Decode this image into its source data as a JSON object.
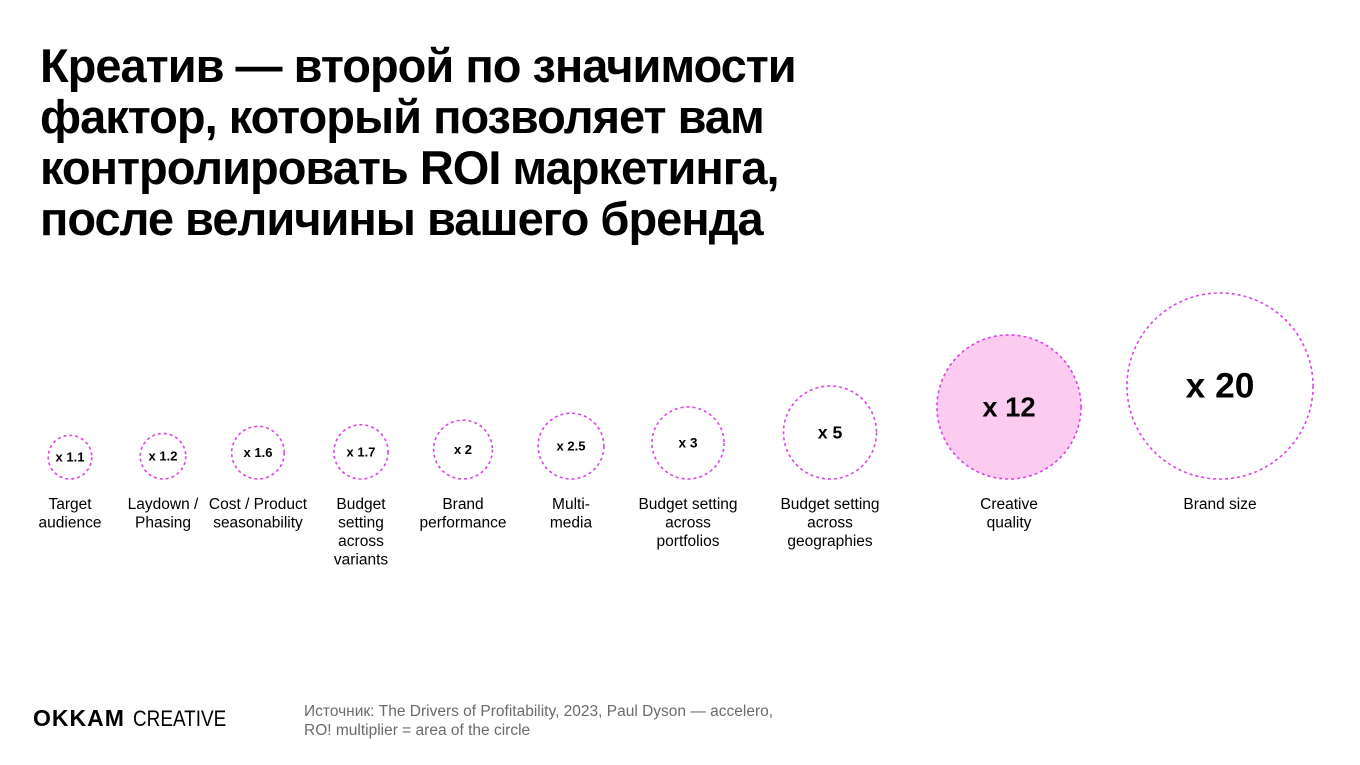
{
  "header": {
    "title_lines": [
      "Креатив — второй по значимости",
      "фактор, который позволяет вам",
      "контролировать ROI маркетинга,",
      "после величины вашего бренда"
    ]
  },
  "colors": {
    "accent": "#e040e8",
    "highlight_fill": "#fccbf0",
    "text": "#000000",
    "muted_text": "#6b6b6b"
  },
  "chart_data": {
    "type": "bubble",
    "title": "",
    "encoding": "RO! multiplier = area of the circle",
    "series": [
      {
        "label_lines": [
          "Target",
          "audience"
        ],
        "value": 1.1,
        "value_label": "x 1.1",
        "highlighted": false
      },
      {
        "label_lines": [
          "Laydown /",
          "Phasing"
        ],
        "value": 1.2,
        "value_label": "x 1.2",
        "highlighted": false
      },
      {
        "label_lines": [
          "Cost / Product",
          "seasonability"
        ],
        "value": 1.6,
        "value_label": "x 1.6",
        "highlighted": false
      },
      {
        "label_lines": [
          "Budget",
          "setting",
          "across",
          "variants"
        ],
        "value": 1.7,
        "value_label": "x 1.7",
        "highlighted": false
      },
      {
        "label_lines": [
          "Brand",
          "performance"
        ],
        "value": 2,
        "value_label": "x 2",
        "highlighted": false
      },
      {
        "label_lines": [
          "Multi-",
          "media"
        ],
        "value": 2.5,
        "value_label": "x 2.5",
        "highlighted": false
      },
      {
        "label_lines": [
          "Budget setting",
          "across",
          "portfolios"
        ],
        "value": 3,
        "value_label": "x 3",
        "highlighted": false
      },
      {
        "label_lines": [
          "Budget setting",
          "across",
          "geographies"
        ],
        "value": 5,
        "value_label": "x 5",
        "highlighted": false
      },
      {
        "label_lines": [
          "Creative",
          "quality"
        ],
        "value": 12,
        "value_label": "x 12",
        "highlighted": true
      },
      {
        "label_lines": [
          "Brand size"
        ],
        "value": 20,
        "value_label": "x 20",
        "highlighted": false
      }
    ]
  },
  "footer": {
    "logo_primary": "OKKAM",
    "logo_secondary": "CREATIVE",
    "source_lines": [
      "Источник: The Drivers of Profitability, 2023, Paul Dyson — accelero,",
      "RO! multiplier = area of the circle"
    ]
  }
}
